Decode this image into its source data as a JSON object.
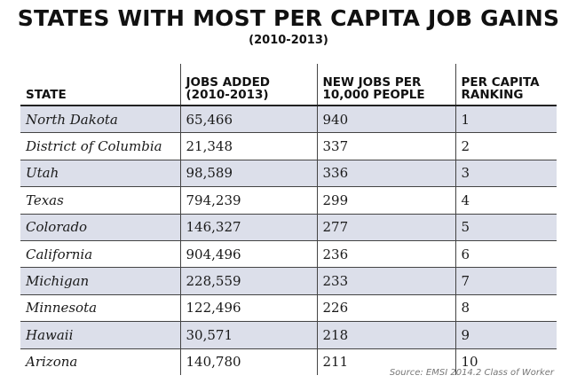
{
  "header": {
    "title": "STATES WITH MOST PER CAPITA JOB GAINS",
    "subtitle": "(2010-2013)"
  },
  "colors": {
    "stripe": "#dcdfea",
    "text": "#1a1a1a"
  },
  "chart_data": {
    "type": "table",
    "title": "STATES WITH MOST PER CAPITA JOB GAINS",
    "subtitle": "(2010-2013)",
    "columns": [
      "STATE",
      "JOBS ADDED\n(2010-2013)",
      "NEW JOBS PER\n10,000 PEOPLE",
      "PER CAPITA\nRANKING"
    ],
    "rows": [
      [
        "North Dakota",
        "65,466",
        "940",
        "1"
      ],
      [
        "District of Columbia",
        "21,348",
        "337",
        "2"
      ],
      [
        "Utah",
        "98,589",
        "336",
        "3"
      ],
      [
        "Texas",
        "794,239",
        "299",
        "4"
      ],
      [
        "Colorado",
        "146,327",
        "277",
        "5"
      ],
      [
        "California",
        "904,496",
        "236",
        "6"
      ],
      [
        "Michigan",
        "228,559",
        "233",
        "7"
      ],
      [
        "Minnesota",
        "122,496",
        "226",
        "8"
      ],
      [
        "Hawaii",
        "30,571",
        "218",
        "9"
      ],
      [
        "Arizona",
        "140,780",
        "211",
        "10"
      ]
    ],
    "source": "Source: EMSI 2014.2 Class of Worker"
  }
}
